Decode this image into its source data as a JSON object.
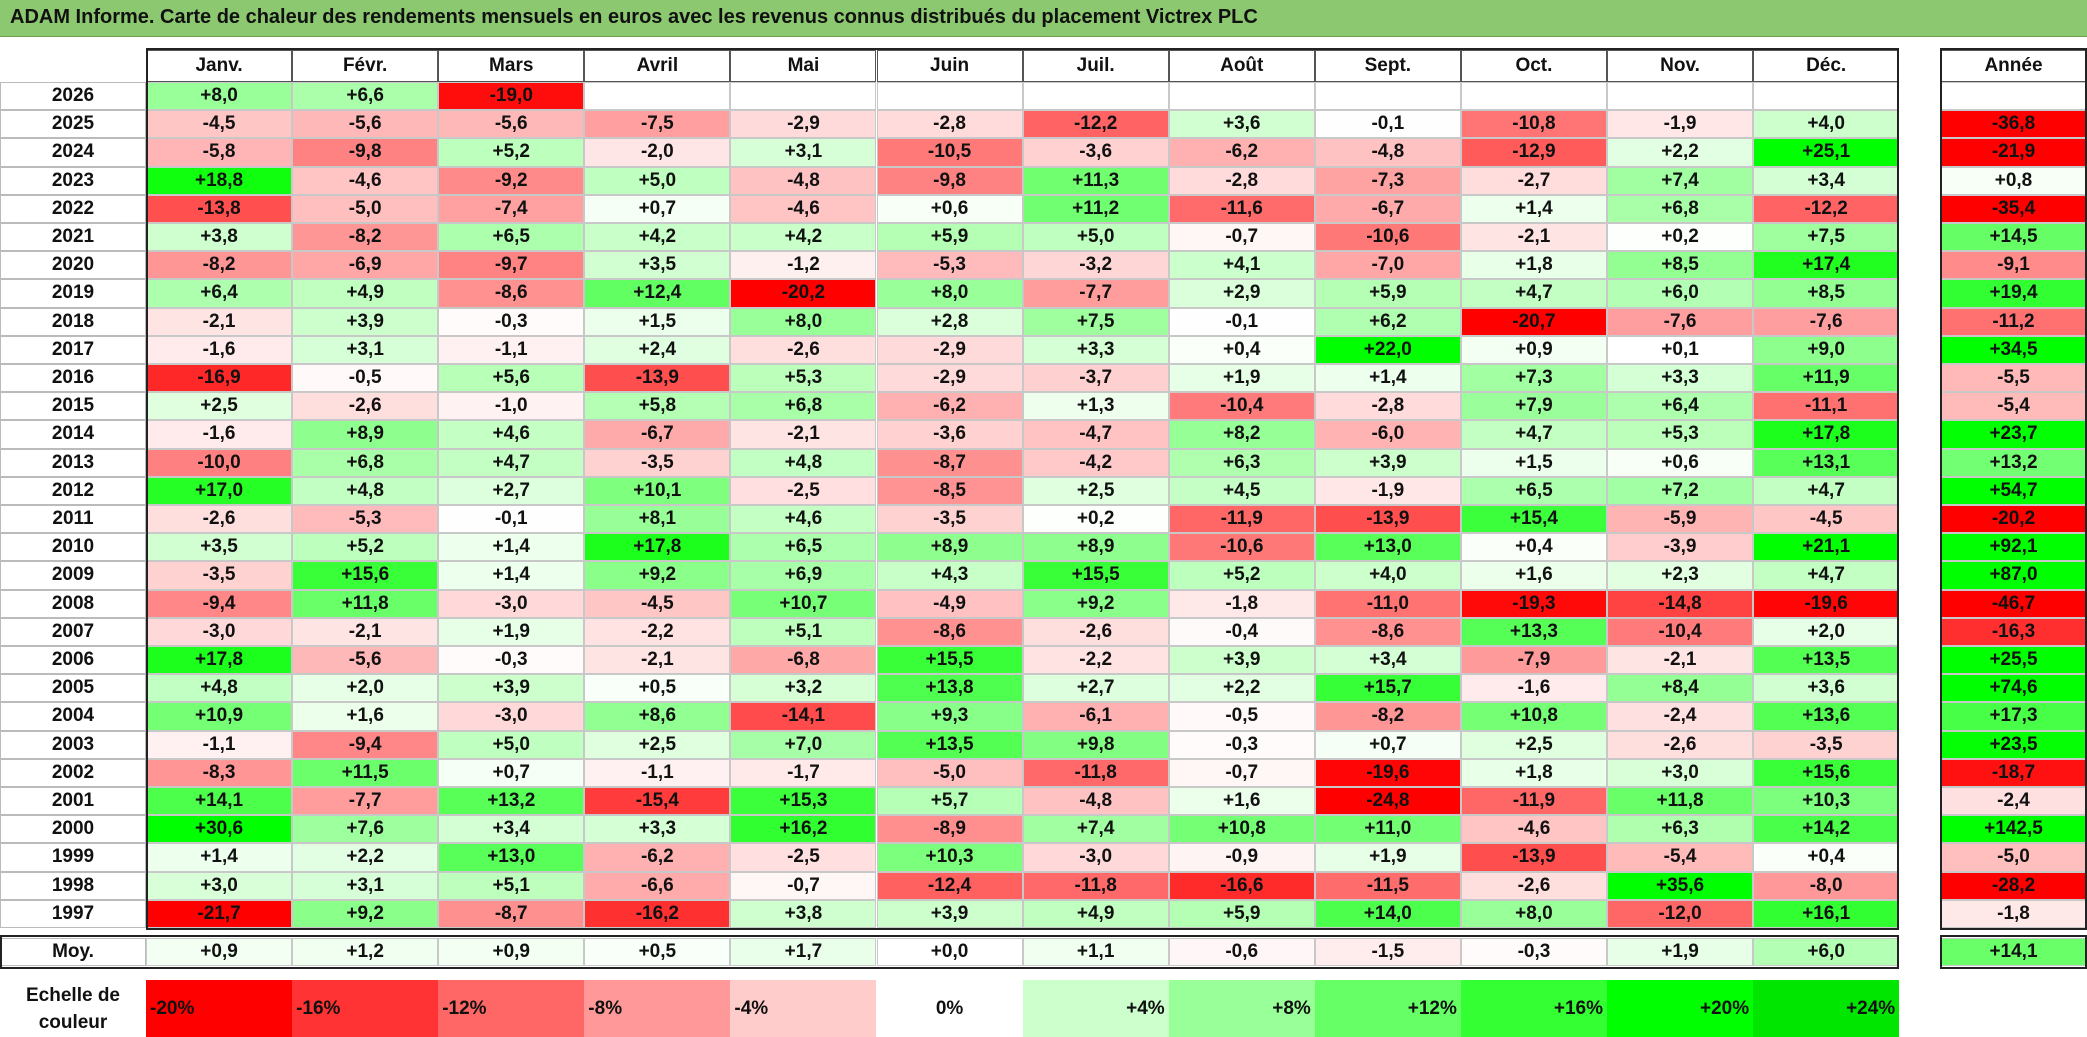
{
  "title": "ADAM Informe. Carte de chaleur des rendements mensuels en euros avec les revenus connus distribués du placement Victrex PLC",
  "chart_data": {
    "type": "heatmap",
    "months": [
      "Janv.",
      "Févr.",
      "Mars",
      "Avril",
      "Mai",
      "Juin",
      "Juil.",
      "Août",
      "Sept.",
      "Oct.",
      "Nov.",
      "Déc."
    ],
    "year_header": "Année",
    "rows": [
      {
        "year": "2026",
        "values": [
          "+8,0",
          "+6,6",
          "-19,0",
          "",
          "",
          "",
          "",
          "",
          "",
          "",
          "",
          ""
        ],
        "annual": ""
      },
      {
        "year": "2025",
        "values": [
          "-4,5",
          "-5,6",
          "-5,6",
          "-7,5",
          "-2,9",
          "-2,8",
          "-12,2",
          "+3,6",
          "-0,1",
          "-10,8",
          "-1,9",
          "+4,0"
        ],
        "annual": "-36,8"
      },
      {
        "year": "2024",
        "values": [
          "-5,8",
          "-9,8",
          "+5,2",
          "-2,0",
          "+3,1",
          "-10,5",
          "-3,6",
          "-6,2",
          "-4,8",
          "-12,9",
          "+2,2",
          "+25,1"
        ],
        "annual": "-21,9"
      },
      {
        "year": "2023",
        "values": [
          "+18,8",
          "-4,6",
          "-9,2",
          "+5,0",
          "-4,8",
          "-9,8",
          "+11,3",
          "-2,8",
          "-7,3",
          "-2,7",
          "+7,4",
          "+3,4"
        ],
        "annual": "+0,8"
      },
      {
        "year": "2022",
        "values": [
          "-13,8",
          "-5,0",
          "-7,4",
          "+0,7",
          "-4,6",
          "+0,6",
          "+11,2",
          "-11,6",
          "-6,7",
          "+1,4",
          "+6,8",
          "-12,2"
        ],
        "annual": "-35,4"
      },
      {
        "year": "2021",
        "values": [
          "+3,8",
          "-8,2",
          "+6,5",
          "+4,2",
          "+4,2",
          "+5,9",
          "+5,0",
          "-0,7",
          "-10,6",
          "-2,1",
          "+0,2",
          "+7,5"
        ],
        "annual": "+14,5"
      },
      {
        "year": "2020",
        "values": [
          "-8,2",
          "-6,9",
          "-9,7",
          "+3,5",
          "-1,2",
          "-5,3",
          "-3,2",
          "+4,1",
          "-7,0",
          "+1,8",
          "+8,5",
          "+17,4"
        ],
        "annual": "-9,1"
      },
      {
        "year": "2019",
        "values": [
          "+6,4",
          "+4,9",
          "-8,6",
          "+12,4",
          "-20,2",
          "+8,0",
          "-7,7",
          "+2,9",
          "+5,9",
          "+4,7",
          "+6,0",
          "+8,5"
        ],
        "annual": "+19,4"
      },
      {
        "year": "2018",
        "values": [
          "-2,1",
          "+3,9",
          "-0,3",
          "+1,5",
          "+8,0",
          "+2,8",
          "+7,5",
          "-0,1",
          "+6,2",
          "-20,7",
          "-7,6",
          "-7,6"
        ],
        "annual": "-11,2"
      },
      {
        "year": "2017",
        "values": [
          "-1,6",
          "+3,1",
          "-1,1",
          "+2,4",
          "-2,6",
          "-2,9",
          "+3,3",
          "+0,4",
          "+22,0",
          "+0,9",
          "+0,1",
          "+9,0"
        ],
        "annual": "+34,5"
      },
      {
        "year": "2016",
        "values": [
          "-16,9",
          "-0,5",
          "+5,6",
          "-13,9",
          "+5,3",
          "-2,9",
          "-3,7",
          "+1,9",
          "+1,4",
          "+7,3",
          "+3,3",
          "+11,9"
        ],
        "annual": "-5,5"
      },
      {
        "year": "2015",
        "values": [
          "+2,5",
          "-2,6",
          "-1,0",
          "+5,8",
          "+6,8",
          "-6,2",
          "+1,3",
          "-10,4",
          "-2,8",
          "+7,9",
          "+6,4",
          "-11,1"
        ],
        "annual": "-5,4"
      },
      {
        "year": "2014",
        "values": [
          "-1,6",
          "+8,9",
          "+4,6",
          "-6,7",
          "-2,1",
          "-3,6",
          "-4,7",
          "+8,2",
          "-6,0",
          "+4,7",
          "+5,3",
          "+17,8"
        ],
        "annual": "+23,7"
      },
      {
        "year": "2013",
        "values": [
          "-10,0",
          "+6,8",
          "+4,7",
          "-3,5",
          "+4,8",
          "-8,7",
          "-4,2",
          "+6,3",
          "+3,9",
          "+1,5",
          "+0,6",
          "+13,1"
        ],
        "annual": "+13,2"
      },
      {
        "year": "2012",
        "values": [
          "+17,0",
          "+4,8",
          "+2,7",
          "+10,1",
          "-2,5",
          "-8,5",
          "+2,5",
          "+4,5",
          "-1,9",
          "+6,5",
          "+7,2",
          "+4,7"
        ],
        "annual": "+54,7"
      },
      {
        "year": "2011",
        "values": [
          "-2,6",
          "-5,3",
          "-0,1",
          "+8,1",
          "+4,6",
          "-3,5",
          "+0,2",
          "-11,9",
          "-13,9",
          "+15,4",
          "-5,9",
          "-4,5"
        ],
        "annual": "-20,2"
      },
      {
        "year": "2010",
        "values": [
          "+3,5",
          "+5,2",
          "+1,4",
          "+17,8",
          "+6,5",
          "+8,9",
          "+8,9",
          "-10,6",
          "+13,0",
          "+0,4",
          "-3,9",
          "+21,1"
        ],
        "annual": "+92,1"
      },
      {
        "year": "2009",
        "values": [
          "-3,5",
          "+15,6",
          "+1,4",
          "+9,2",
          "+6,9",
          "+4,3",
          "+15,5",
          "+5,2",
          "+4,0",
          "+1,6",
          "+2,3",
          "+4,7"
        ],
        "annual": "+87,0"
      },
      {
        "year": "2008",
        "values": [
          "-9,4",
          "+11,8",
          "-3,0",
          "-4,5",
          "+10,7",
          "-4,9",
          "+9,2",
          "-1,8",
          "-11,0",
          "-19,3",
          "-14,8",
          "-19,6"
        ],
        "annual": "-46,7"
      },
      {
        "year": "2007",
        "values": [
          "-3,0",
          "-2,1",
          "+1,9",
          "-2,2",
          "+5,1",
          "-8,6",
          "-2,6",
          "-0,4",
          "-8,6",
          "+13,3",
          "-10,4",
          "+2,0"
        ],
        "annual": "-16,3"
      },
      {
        "year": "2006",
        "values": [
          "+17,8",
          "-5,6",
          "-0,3",
          "-2,1",
          "-6,8",
          "+15,5",
          "-2,2",
          "+3,9",
          "+3,4",
          "-7,9",
          "-2,1",
          "+13,5"
        ],
        "annual": "+25,5"
      },
      {
        "year": "2005",
        "values": [
          "+4,8",
          "+2,0",
          "+3,9",
          "+0,5",
          "+3,2",
          "+13,8",
          "+2,7",
          "+2,2",
          "+15,7",
          "-1,6",
          "+8,4",
          "+3,6"
        ],
        "annual": "+74,6"
      },
      {
        "year": "2004",
        "values": [
          "+10,9",
          "+1,6",
          "-3,0",
          "+8,6",
          "-14,1",
          "+9,3",
          "-6,1",
          "-0,5",
          "-8,2",
          "+10,8",
          "-2,4",
          "+13,6"
        ],
        "annual": "+17,3"
      },
      {
        "year": "2003",
        "values": [
          "-1,1",
          "-9,4",
          "+5,0",
          "+2,5",
          "+7,0",
          "+13,5",
          "+9,8",
          "-0,3",
          "+0,7",
          "+2,5",
          "-2,6",
          "-3,5"
        ],
        "annual": "+23,5"
      },
      {
        "year": "2002",
        "values": [
          "-8,3",
          "+11,5",
          "+0,7",
          "-1,1",
          "-1,7",
          "-5,0",
          "-11,8",
          "-0,7",
          "-19,6",
          "+1,8",
          "+3,0",
          "+15,6"
        ],
        "annual": "-18,7"
      },
      {
        "year": "2001",
        "values": [
          "+14,1",
          "-7,7",
          "+13,2",
          "-15,4",
          "+15,3",
          "+5,7",
          "-4,8",
          "+1,6",
          "-24,8",
          "-11,9",
          "+11,8",
          "+10,3"
        ],
        "annual": "-2,4"
      },
      {
        "year": "2000",
        "values": [
          "+30,6",
          "+7,6",
          "+3,4",
          "+3,3",
          "+16,2",
          "-8,9",
          "+7,4",
          "+10,8",
          "+11,0",
          "-4,6",
          "+6,3",
          "+14,2"
        ],
        "annual": "+142,5"
      },
      {
        "year": "1999",
        "values": [
          "+1,4",
          "+2,2",
          "+13,0",
          "-6,2",
          "-2,5",
          "+10,3",
          "-3,0",
          "-0,9",
          "+1,9",
          "-13,9",
          "-5,4",
          "+0,4"
        ],
        "annual": "-5,0"
      },
      {
        "year": "1998",
        "values": [
          "+3,0",
          "+3,1",
          "+5,1",
          "-6,6",
          "-0,7",
          "-12,4",
          "-11,8",
          "-16,6",
          "-11,5",
          "-2,6",
          "+35,6",
          "-8,0"
        ],
        "annual": "-28,2"
      },
      {
        "year": "1997",
        "values": [
          "-21,7",
          "+9,2",
          "-8,7",
          "-16,2",
          "+3,8",
          "+3,9",
          "+4,9",
          "+5,9",
          "+14,0",
          "+8,0",
          "-12,0",
          "+16,1"
        ],
        "annual": "-1,8"
      }
    ],
    "average": {
      "label": "Moy.",
      "values": [
        "+0,9",
        "+1,2",
        "+0,9",
        "+0,5",
        "+1,7",
        "+0,0",
        "+1,1",
        "-0,6",
        "-1,5",
        "-0,3",
        "+1,9",
        "+6,0"
      ],
      "annual": "+14,1"
    },
    "color_scale": {
      "label": "Echelle de couleur",
      "stops": [
        {
          "label": "-20%",
          "value": -20,
          "color": "#ff0000"
        },
        {
          "label": "-16%",
          "value": -16,
          "color": "#ff3333"
        },
        {
          "label": "-12%",
          "value": -12,
          "color": "#ff6666"
        },
        {
          "label": "-8%",
          "value": -8,
          "color": "#ff9999"
        },
        {
          "label": "-4%",
          "value": -4,
          "color": "#ffcccc"
        },
        {
          "label": "0%",
          "value": 0,
          "color": "#ffffff"
        },
        {
          "label": "+4%",
          "value": 4,
          "color": "#ccffcc"
        },
        {
          "label": "+8%",
          "value": 8,
          "color": "#99ff99"
        },
        {
          "label": "+12%",
          "value": 12,
          "color": "#66ff66"
        },
        {
          "label": "+16%",
          "value": 16,
          "color": "#33ff33"
        },
        {
          "label": "+20%",
          "value": 20,
          "color": "#00ff00"
        },
        {
          "label": "+24%",
          "value": 24,
          "color": "#00e600"
        }
      ]
    }
  }
}
